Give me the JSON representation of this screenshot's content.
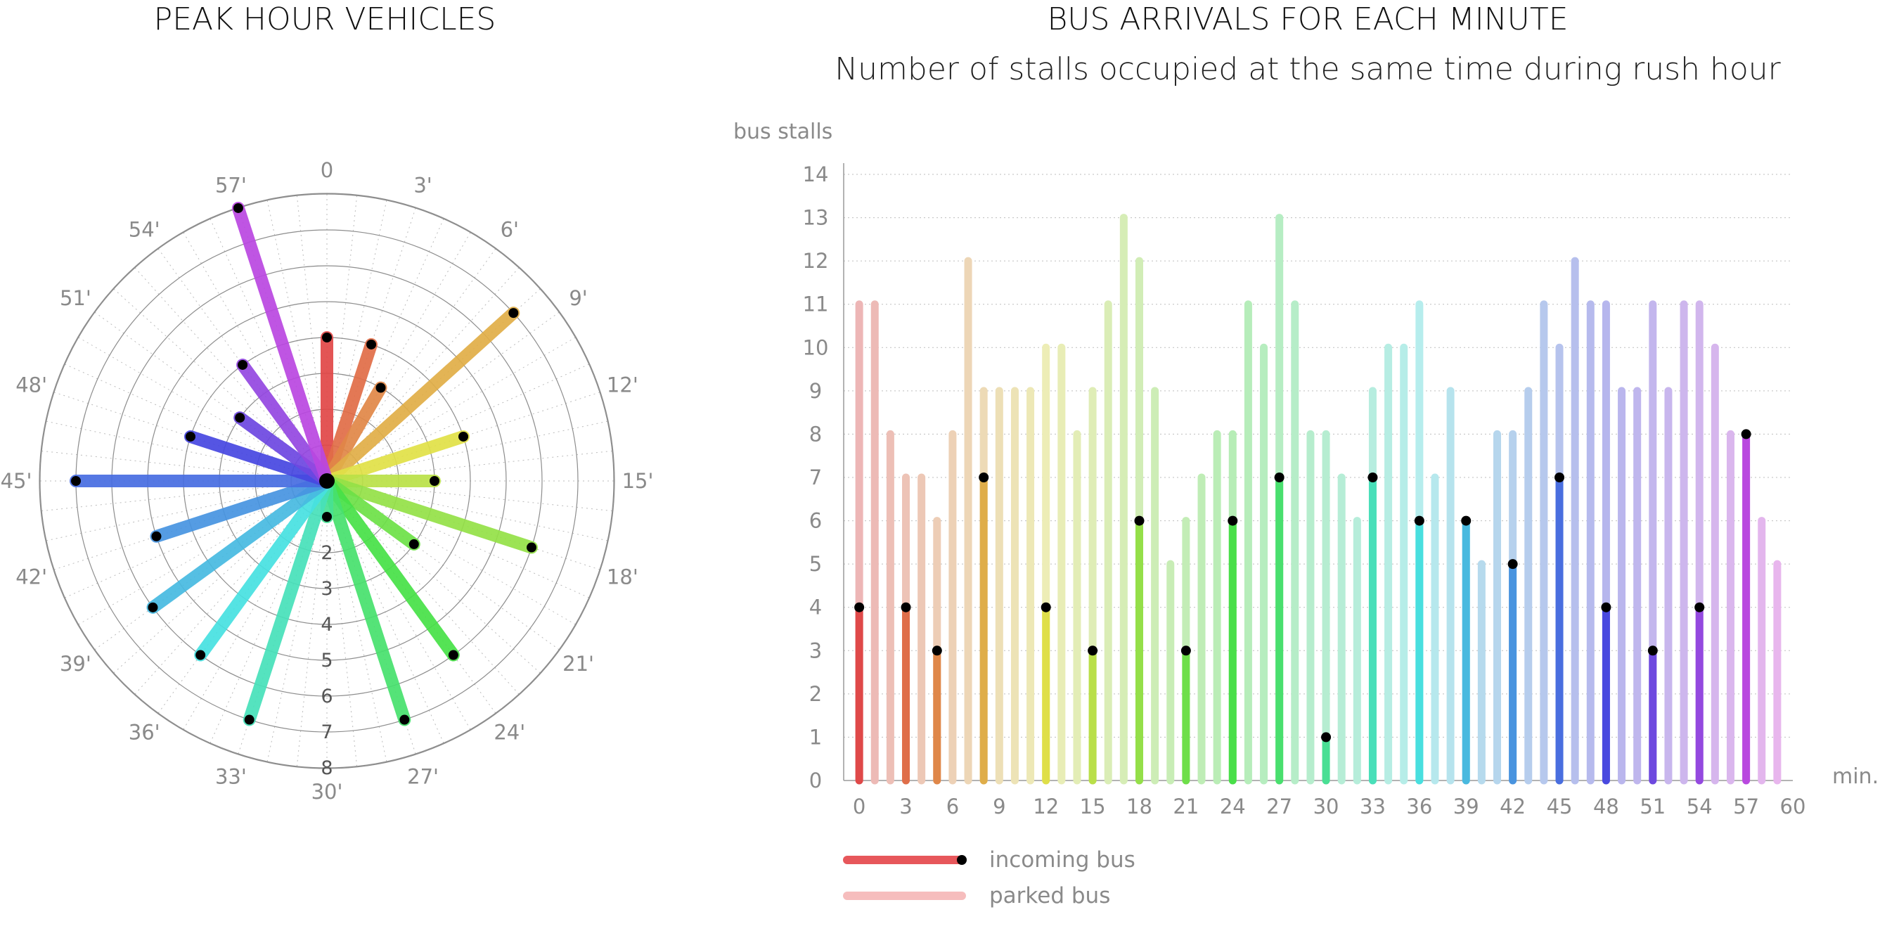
{
  "chart_data": [
    {
      "type": "radial-bar",
      "title": "PEAK HOUR VEHICLES",
      "angle_labels": [
        "0",
        "3'",
        "6'",
        "9'",
        "12'",
        "15'",
        "18'",
        "21'",
        "24'",
        "27'",
        "30'",
        "33'",
        "36'",
        "39'",
        "42'",
        "45'",
        "48'",
        "51'",
        "54'",
        "57'"
      ],
      "radial_ticks": [
        "2",
        "3",
        "4",
        "5",
        "6",
        "7",
        "8"
      ],
      "rlim": [
        0,
        8
      ],
      "grid": true,
      "points": [
        {
          "minute": 0,
          "value": 4
        },
        {
          "minute": 3,
          "value": 4
        },
        {
          "minute": 5,
          "value": 3
        },
        {
          "minute": 8,
          "value": 7
        },
        {
          "minute": 12,
          "value": 4
        },
        {
          "minute": 15,
          "value": 3
        },
        {
          "minute": 18,
          "value": 6
        },
        {
          "minute": 21,
          "value": 3
        },
        {
          "minute": 24,
          "value": 6
        },
        {
          "minute": 27,
          "value": 7
        },
        {
          "minute": 30,
          "value": 1
        },
        {
          "minute": 33,
          "value": 7
        },
        {
          "minute": 36,
          "value": 6
        },
        {
          "minute": 39,
          "value": 6
        },
        {
          "minute": 42,
          "value": 5
        },
        {
          "minute": 45,
          "value": 7
        },
        {
          "minute": 48,
          "value": 4
        },
        {
          "minute": 51,
          "value": 3
        },
        {
          "minute": 54,
          "value": 4
        },
        {
          "minute": 57,
          "value": 8
        }
      ]
    },
    {
      "type": "bar",
      "title": "BUS ARRIVALS FOR EACH MINUTE",
      "subtitle": "Number of stalls occupied at the same time during rush hour",
      "ylabel": "bus stalls",
      "xlabel": "min.",
      "ylim": [
        0,
        14
      ],
      "xlim": [
        -1,
        60
      ],
      "yticks": [
        0,
        1,
        2,
        3,
        4,
        5,
        6,
        7,
        8,
        9,
        10,
        11,
        12,
        13,
        14
      ],
      "xticks": [
        0,
        3,
        6,
        9,
        12,
        15,
        18,
        21,
        24,
        27,
        30,
        33,
        36,
        39,
        42,
        45,
        48,
        51,
        54,
        57,
        60
      ],
      "grid": true,
      "series": [
        {
          "name": "parked bus",
          "x": [
            0,
            1,
            2,
            3,
            4,
            5,
            6,
            7,
            8,
            9,
            10,
            11,
            12,
            13,
            14,
            15,
            16,
            17,
            18,
            19,
            20,
            21,
            22,
            23,
            24,
            25,
            26,
            27,
            28,
            29,
            30,
            31,
            32,
            33,
            34,
            35,
            36,
            37,
            38,
            39,
            40,
            41,
            42,
            43,
            44,
            45,
            46,
            47,
            48,
            49,
            50,
            51,
            52,
            53,
            54,
            55,
            56,
            57,
            58,
            59
          ],
          "values": [
            11,
            11,
            8,
            7,
            7,
            6,
            8,
            12,
            9,
            9,
            9,
            9,
            10,
            10,
            8,
            9,
            11,
            13,
            12,
            9,
            5,
            6,
            7,
            8,
            8,
            11,
            10,
            13,
            11,
            8,
            8,
            7,
            6,
            9,
            10,
            10,
            11,
            7,
            9,
            6,
            5,
            8,
            8,
            9,
            11,
            10,
            12,
            11,
            11,
            9,
            9,
            11,
            9,
            11,
            11,
            10,
            8,
            7,
            6,
            5
          ]
        },
        {
          "name": "incoming bus",
          "x": [
            0,
            3,
            5,
            8,
            12,
            15,
            18,
            21,
            24,
            27,
            30,
            33,
            36,
            39,
            42,
            45,
            48,
            51,
            54,
            57
          ],
          "values": [
            4,
            4,
            3,
            7,
            4,
            3,
            6,
            3,
            6,
            7,
            1,
            7,
            6,
            6,
            5,
            7,
            4,
            3,
            4,
            8
          ]
        }
      ],
      "legend": {
        "placement": "bottom-left",
        "entries": [
          "incoming bus",
          "parked bus"
        ]
      }
    }
  ]
}
